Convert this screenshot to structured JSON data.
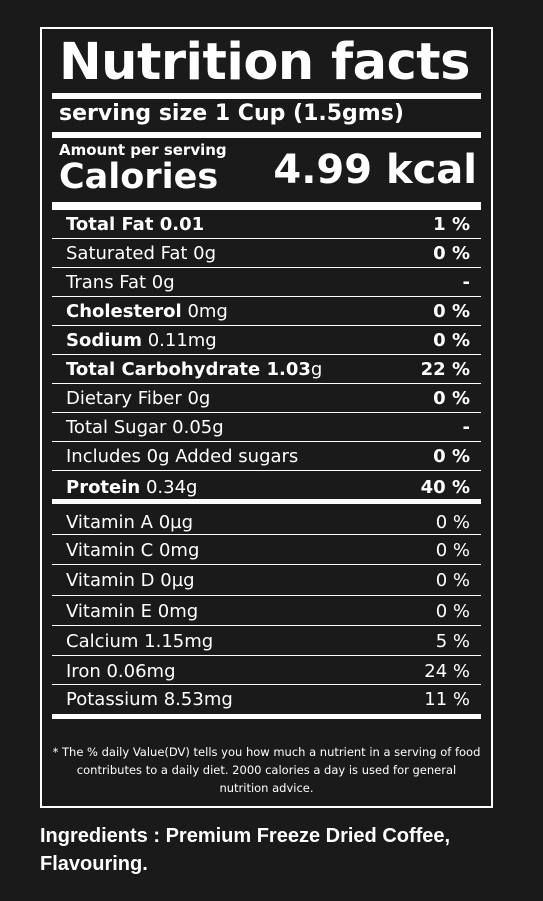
{
  "label": {
    "title": "Nutrition facts",
    "serving_size": "serving size 1 Cup (1.5gms)",
    "amount_per_serving": "Amount per serving",
    "calories_label": "Calories",
    "calories_value": "4.99 kcal"
  },
  "nutrients": [
    {
      "label": "Total Fat 0.01",
      "bold": "",
      "rest": "",
      "pct": "1 %"
    },
    {
      "label": "Saturated Fat 0g",
      "bold": "",
      "rest": "",
      "pct": "0 %"
    },
    {
      "label": "Trans Fat 0g",
      "bold": "",
      "rest": "",
      "pct": "-"
    },
    {
      "label": "",
      "bold": "Cholesterol",
      "rest": " 0mg",
      "pct": "0 %"
    },
    {
      "label": "",
      "bold": "Sodium",
      "rest": " 0.11mg",
      "pct": "0 %"
    },
    {
      "label": "",
      "bold": "Total Carbohydrate 1.03",
      "rest": "g",
      "pct": "22 %"
    },
    {
      "label": "Dietary Fiber 0g",
      "bold": "",
      "rest": "",
      "pct": "0 %"
    },
    {
      "label": "Total Sugar 0.05g",
      "bold": "",
      "rest": "",
      "pct": "-"
    },
    {
      "label": "Includes 0g Added sugars",
      "bold": "",
      "rest": "",
      "pct": "0 %"
    },
    {
      "label": "",
      "bold": "Protein",
      "rest": " 0.34g",
      "pct": "40 %"
    }
  ],
  "vitamins": [
    {
      "label": "Vitamin A 0µg",
      "pct": "0 %"
    },
    {
      "label": "Vitamin C 0mg",
      "pct": "0 %"
    },
    {
      "label": "Vitamin D 0µg",
      "pct": "0 %"
    },
    {
      "label": "Vitamin E 0mg",
      "pct": "0 %"
    },
    {
      "label": "Calcium 1.15mg",
      "pct": "5 %"
    },
    {
      "label": "Iron 0.06mg",
      "pct": "24 %"
    },
    {
      "label": "Potassium 8.53mg",
      "pct": "11 %"
    }
  ],
  "footnote": "* The % daily Value(DV) tells you how much a nutrient in a serving of food contributes to a daily diet. 2000 calories a day is used for general nutrition advice.",
  "ingredients": "Ingredients : Premium Freeze Dried Coffee, Flavouring."
}
